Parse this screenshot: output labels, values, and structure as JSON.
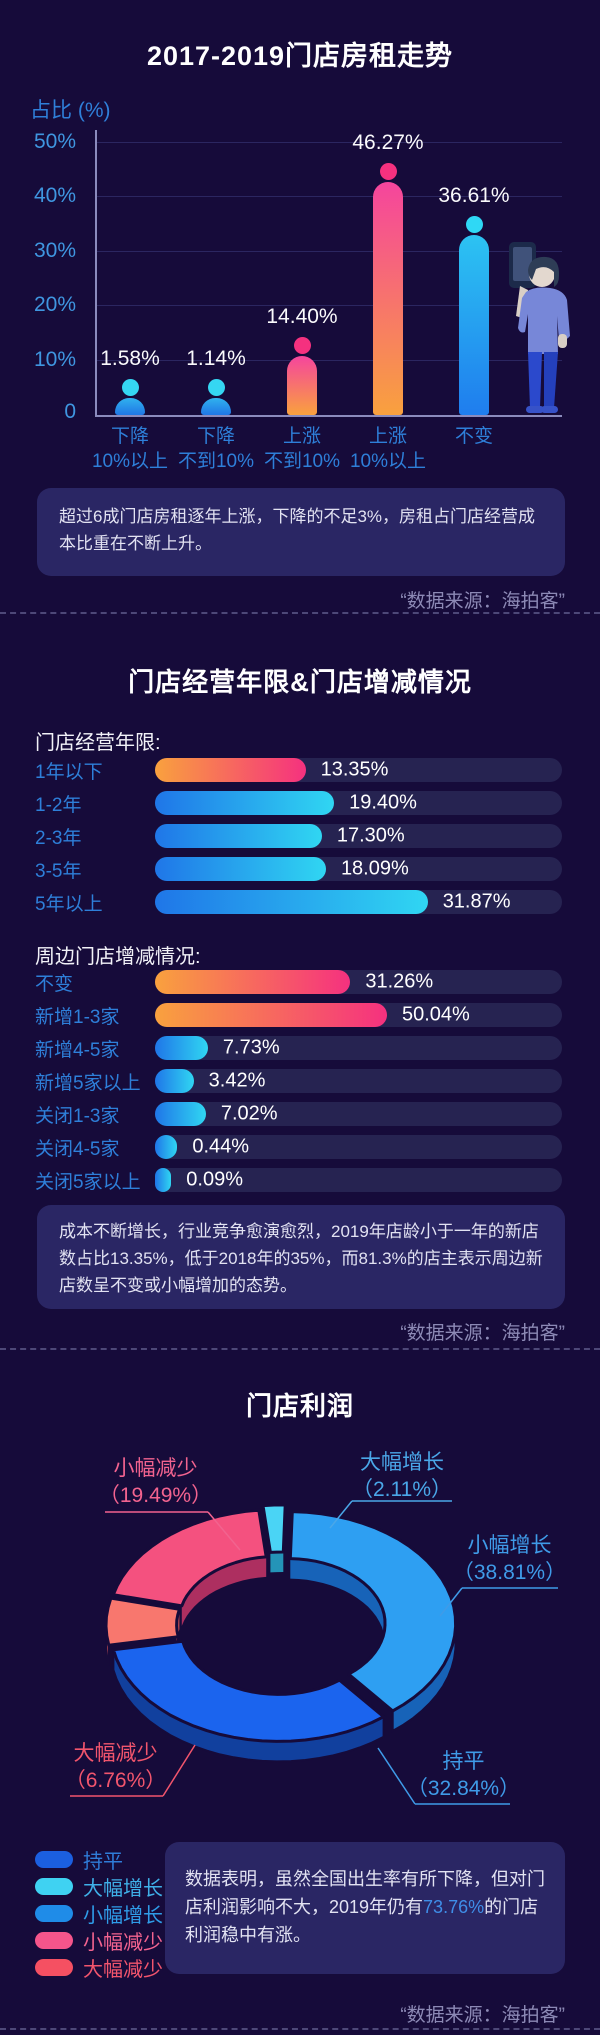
{
  "page": {
    "bg": "#160b3a"
  },
  "sections": {
    "rent": {
      "title": "2017-2019门店房租走势",
      "y_axis_title": "占比 (%)",
      "note": "超过6成门店房租逐年上涨，下降的不足3%，房租占门店经营成本比重在不断上升。",
      "source": "“数据来源：海拍客”"
    },
    "tenure": {
      "title": "门店经营年限&门店增减情况",
      "subtitle1": "门店经营年限:",
      "subtitle2": "周边门店增减情况:",
      "note": "成本不断增长，行业竞争愈演愈烈，2019年店龄小于一年的新店数占比13.35%，低于2018年的35%，而81.3%的店主表示周边新店数呈不变或小幅增加的态势。",
      "source": "“数据来源：海拍客”"
    },
    "profit": {
      "title": "门店利润",
      "note_pre": "数据表明，虽然全国出生率有所下降，但对门店利润影响不大，2019年仍有",
      "note_hl": "73.76%",
      "note_post": "的门店利润稳中有涨。",
      "source": "“数据来源：海拍客”",
      "legend": [
        {
          "label": "持平",
          "color": "#1b5fe0",
          "text_color": "#2f7cd9"
        },
        {
          "label": "大幅增长",
          "color": "#3fd2f2",
          "text_color": "#3fb0e8"
        },
        {
          "label": "小幅增长",
          "color": "#1f8ce8",
          "text_color": "#2f9ce8"
        },
        {
          "label": "小幅减少",
          "color": "#f5558b",
          "text_color": "#f2638f"
        },
        {
          "label": "大幅减少",
          "color": "#f55062",
          "text_color": "#f2556d"
        }
      ]
    }
  },
  "chart_data": [
    {
      "type": "bar",
      "title": "2017-2019门店房租走势",
      "ylabel": "占比 (%)",
      "ylim": [
        0,
        50
      ],
      "grid": true,
      "yticks": [
        {
          "v": 10,
          "label": "10%"
        },
        {
          "v": 20,
          "label": "20%"
        },
        {
          "v": 30,
          "label": "30%"
        },
        {
          "v": 40,
          "label": "40%"
        },
        {
          "v": 50,
          "label": "50%"
        }
      ],
      "zero_label": "0",
      "categories": [
        [
          "下降",
          "10%以上"
        ],
        [
          "下降",
          "不到10%"
        ],
        [
          "上涨",
          "不到10%"
        ],
        [
          "上涨",
          "10%以上"
        ],
        [
          "不变"
        ]
      ],
      "values": [
        1.58,
        1.14,
        14.4,
        46.27,
        36.61
      ],
      "value_labels": [
        "1.58%",
        "1.14%",
        "14.40%",
        "46.27%",
        "36.61%"
      ],
      "palettes": [
        "blue",
        "blue",
        "pink",
        "pink",
        "cyan"
      ]
    },
    {
      "type": "bar",
      "orientation": "horizontal",
      "title": "门店经营年限:",
      "rows": [
        {
          "label": "1年以下",
          "value": 13.35,
          "text": "13.35%",
          "width_pct": 37,
          "gradient": "warm"
        },
        {
          "label": "1-2年",
          "value": 19.4,
          "text": "19.40%",
          "width_pct": 44,
          "gradient": "cool"
        },
        {
          "label": "2-3年",
          "value": 17.3,
          "text": "17.30%",
          "width_pct": 41,
          "gradient": "cool"
        },
        {
          "label": "3-5年",
          "value": 18.09,
          "text": "18.09%",
          "width_pct": 42,
          "gradient": "cool"
        },
        {
          "label": "5年以上",
          "value": 31.87,
          "text": "31.87%",
          "width_pct": 67,
          "gradient": "cool"
        }
      ]
    },
    {
      "type": "bar",
      "orientation": "horizontal",
      "title": "周边门店增减情况:",
      "rows": [
        {
          "label": "不变",
          "value": 31.26,
          "text": "31.26%",
          "width_pct": 48,
          "gradient": "warm"
        },
        {
          "label": "新增1-3家",
          "value": 50.04,
          "text": "50.04%",
          "width_pct": 57,
          "gradient": "warm"
        },
        {
          "label": "新增4-5家",
          "value": 7.73,
          "text": "7.73%",
          "width_pct": 13,
          "gradient": "cool"
        },
        {
          "label": "新增5家以上",
          "value": 3.42,
          "text": "3.42%",
          "width_pct": 9.5,
          "gradient": "cool"
        },
        {
          "label": "关闭1-3家",
          "value": 7.02,
          "text": "7.02%",
          "width_pct": 12.5,
          "gradient": "cool"
        },
        {
          "label": "关闭4-5家",
          "value": 0.44,
          "text": "0.44%",
          "width_pct": 5.5,
          "gradient": "cool"
        },
        {
          "label": "关闭5家以上",
          "value": 0.09,
          "text": "0.09%",
          "width_pct": 4,
          "gradient": "cool"
        }
      ]
    },
    {
      "type": "pie",
      "title": "门店利润",
      "start_angle": -6,
      "slices": [
        {
          "label": "大幅增长",
          "value": 2.11,
          "pct_text": "（2.11%）",
          "top_color": "#4ad4f5",
          "side_color": "#2494b8",
          "label_color": "#4aa7e8"
        },
        {
          "label": "小幅增长",
          "value": 38.81,
          "pct_text": "（38.81%）",
          "top_color": "#2e9ff2",
          "side_color": "#1763b8",
          "label_color": "#3f9be8"
        },
        {
          "label": "持平",
          "value": 32.84,
          "pct_text": "（32.84%）",
          "top_color": "#1b64ee",
          "side_color": "#11409e",
          "label_color": "#3f9be8"
        },
        {
          "label": "大幅减少",
          "value": 6.76,
          "pct_text": "（6.76%）",
          "top_color": "#f8776e",
          "side_color": "#bf4a52",
          "label_color": "#f2556d"
        },
        {
          "label": "小幅减少",
          "value": 19.49,
          "pct_text": "（19.49%）",
          "top_color": "#f4517f",
          "side_color": "#ad2f60",
          "label_color": "#f2638f"
        }
      ]
    }
  ]
}
